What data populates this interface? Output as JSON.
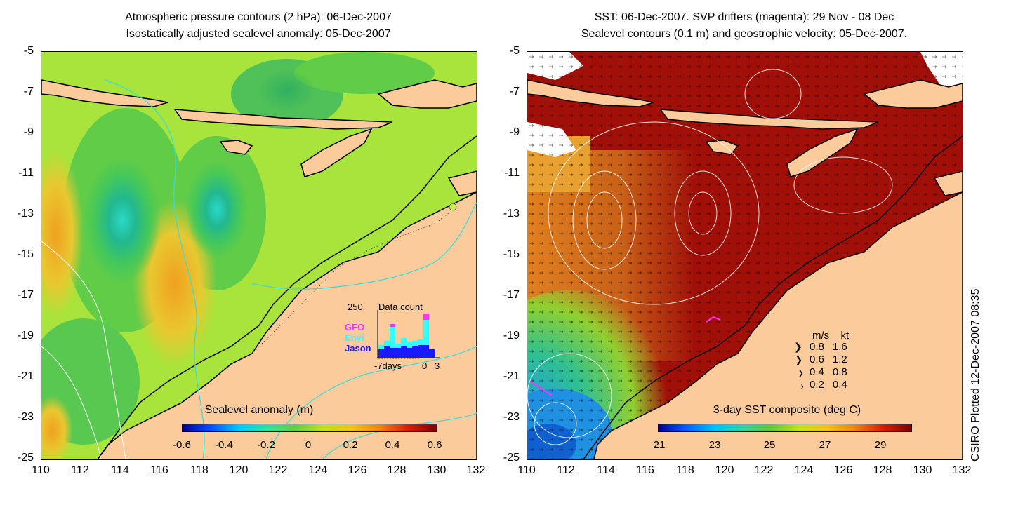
{
  "left_panel": {
    "title_line1": "Atmospheric pressure contours (2 hPa): 06-Dec-2007",
    "title_line2": "Isostatically adjusted sealevel anomaly: 05-Dec-2007",
    "colorbar_title": "Sealevel anomaly (m)",
    "colorbar_ticks": [
      "-0.6",
      "-0.4",
      "-0.2",
      "0",
      "0.2",
      "0.4",
      "0.6"
    ],
    "inset": {
      "count_max": "250",
      "title": "Data count",
      "missions": [
        "GFO",
        "Envi",
        "Jason"
      ],
      "mission_colors": [
        "#ff33ff",
        "#33ffff",
        "#1a1aff"
      ],
      "x_left": "-7days",
      "x_mid": "0",
      "x_right": "3"
    }
  },
  "right_panel": {
    "title_line1": "SST: 06-Dec-2007. SVP drifters (magenta): 29 Nov - 08 Dec",
    "title_line2": "Sealevel contours (0.1 m) and geostrophic velocity: 05-Dec-2007.",
    "colorbar_title": "3-day SST composite (deg C)",
    "colorbar_ticks": [
      "21",
      "23",
      "25",
      "27",
      "29"
    ],
    "velocity_legend": {
      "header_ms": "m/s",
      "header_kt": "kt",
      "rows": [
        {
          "ms": "0.8",
          "kt": "1.6"
        },
        {
          "ms": "0.6",
          "kt": "1.2"
        },
        {
          "ms": "0.4",
          "kt": "0.8"
        },
        {
          "ms": "0.2",
          "kt": "0.4"
        }
      ]
    }
  },
  "y_ticks": [
    "-5",
    "-7",
    "-9",
    "-11",
    "-13",
    "-15",
    "-17",
    "-19",
    "-21",
    "-23",
    "-25"
  ],
  "x_ticks": [
    "110",
    "112",
    "114",
    "116",
    "118",
    "120",
    "122",
    "124",
    "126",
    "128",
    "130",
    "132"
  ],
  "credit": "CSIRO Plotted 12-Dec-2007 08:35",
  "colors": {
    "land": "#fbcb9b",
    "sla_background": "#a8e43c",
    "sst_warm": "#a01008",
    "contour_cyan": "#33dddd"
  }
}
